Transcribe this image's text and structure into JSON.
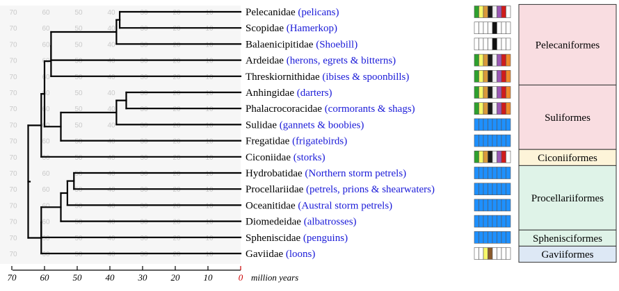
{
  "axis": {
    "ticks": [
      70,
      60,
      50,
      40,
      30,
      20,
      10,
      0
    ],
    "unit_label": "million years",
    "zero_color": "#cc0000"
  },
  "background_grid": {
    "values": [
      70,
      60,
      50,
      40,
      30,
      20,
      10
    ]
  },
  "taxa": [
    {
      "family": "Pelecanidae",
      "common": "(pelicans)",
      "swatches": [
        "#2ea02e",
        "#f7f76a",
        "#d99a3a",
        "#1a1a1a",
        "#f0f0f0",
        "#9b59b6",
        "#d01b1b",
        "#ffffff"
      ]
    },
    {
      "family": "Scopidae",
      "common": "(Hamerkop)",
      "swatches": [
        "#ffffff",
        "#ffffff",
        "#ffffff",
        "#ffffff",
        "#111111",
        "#ffffff",
        "#ffffff",
        "#ffffff"
      ]
    },
    {
      "family": "Balaenicipitidae",
      "common": "(Shoebill)",
      "swatches": [
        "#ffffff",
        "#ffffff",
        "#ffffff",
        "#ffffff",
        "#111111",
        "#ffffff",
        "#ffffff",
        "#ffffff"
      ]
    },
    {
      "family": "Ardeidae",
      "common": "(herons, egrets & bitterns)",
      "swatches": [
        "#2ea02e",
        "#f7f76a",
        "#d99a3a",
        "#1a1a1a",
        "#f0f0f0",
        "#9b59b6",
        "#d01b1b",
        "#f08a2a"
      ]
    },
    {
      "family": "Threskiornithidae",
      "common": "(ibises & spoonbills)",
      "swatches": [
        "#2ea02e",
        "#f7f76a",
        "#d99a3a",
        "#1a1a1a",
        "#f0f0f0",
        "#9b59b6",
        "#d01b1b",
        "#f08a2a"
      ]
    },
    {
      "family": "Anhingidae",
      "common": "(darters)",
      "swatches": [
        "#2ea02e",
        "#f7f76a",
        "#d99a3a",
        "#1a1a1a",
        "#f0f0f0",
        "#9b59b6",
        "#d01b1b",
        "#f08a2a"
      ]
    },
    {
      "family": "Phalacrocoracidae",
      "common": "(cormorants & shags)",
      "swatches": [
        "#2ea02e",
        "#f7f76a",
        "#d99a3a",
        "#1a1a1a",
        "#f0f0f0",
        "#9b59b6",
        "#d01b1b",
        "#f08a2a"
      ]
    },
    {
      "family": "Sulidae",
      "common": "(gannets & boobies)",
      "swatches": [
        "#1e90ff",
        "#1e90ff",
        "#1e90ff",
        "#1e90ff",
        "#1e90ff",
        "#1e90ff",
        "#1e90ff",
        "#1e90ff"
      ]
    },
    {
      "family": "Fregatidae",
      "common": "(frigatebirds)",
      "swatches": [
        "#1e90ff",
        "#1e90ff",
        "#1e90ff",
        "#1e90ff",
        "#1e90ff",
        "#1e90ff",
        "#1e90ff",
        "#1e90ff"
      ]
    },
    {
      "family": "Ciconiidae",
      "common": "(storks)",
      "swatches": [
        "#2ea02e",
        "#f7f76a",
        "#d99a3a",
        "#1a1a1a",
        "#f0f0f0",
        "#9b59b6",
        "#d01b1b",
        "#ffffff"
      ]
    },
    {
      "family": "Hydrobatidae",
      "common": "(Northern storm petrels)",
      "swatches": [
        "#1e90ff",
        "#1e90ff",
        "#1e90ff",
        "#1e90ff",
        "#1e90ff",
        "#1e90ff",
        "#1e90ff",
        "#1e90ff"
      ]
    },
    {
      "family": "Procellariidae",
      "common": "(petrels, prions & shearwaters)",
      "swatches": [
        "#1e90ff",
        "#1e90ff",
        "#1e90ff",
        "#1e90ff",
        "#1e90ff",
        "#1e90ff",
        "#1e90ff",
        "#1e90ff"
      ]
    },
    {
      "family": "Oceanitidae",
      "common": "(Austral storm petrels)",
      "swatches": [
        "#1e90ff",
        "#1e90ff",
        "#1e90ff",
        "#1e90ff",
        "#1e90ff",
        "#1e90ff",
        "#1e90ff",
        "#1e90ff"
      ]
    },
    {
      "family": "Diomedeidae",
      "common": "(albatrosses)",
      "swatches": [
        "#1e90ff",
        "#1e90ff",
        "#1e90ff",
        "#1e90ff",
        "#1e90ff",
        "#1e90ff",
        "#1e90ff",
        "#1e90ff"
      ]
    },
    {
      "family": "Spheniscidae",
      "common": "(penguins)",
      "swatches": [
        "#1e90ff",
        "#1e90ff",
        "#1e90ff",
        "#1e90ff",
        "#1e90ff",
        "#1e90ff",
        "#1e90ff",
        "#1e90ff"
      ]
    },
    {
      "family": "Gaviidae",
      "common": "(loons)",
      "swatches": [
        "#ffffff",
        "#ffffff",
        "#f7f76a",
        "#8b5a2b",
        "#ffffff",
        "#ffffff",
        "#ffffff",
        "#ffffff"
      ]
    }
  ],
  "orders": [
    {
      "name": "Pelecaniformes",
      "first": 0,
      "last": 4,
      "color": "#f9dde1"
    },
    {
      "name": "Suliformes",
      "first": 5,
      "last": 8,
      "color": "#f9dde1"
    },
    {
      "name": "Ciconiiformes",
      "first": 9,
      "last": 9,
      "color": "#fdf4d9"
    },
    {
      "name": "Procellariiformes",
      "first": 10,
      "last": 13,
      "color": "#dff3e8"
    },
    {
      "name": "Sphenisciformes",
      "first": 14,
      "last": 14,
      "color": "#dff3e8"
    },
    {
      "name": "Gaviiformes",
      "first": 15,
      "last": 15,
      "color": "#dde8f5"
    }
  ],
  "tree": {
    "age": 65,
    "children": [
      {
        "age": 61,
        "children": [
          {
            "age": 60,
            "children": [
              {
                "age": 58,
                "children": [
                  {
                    "age": 58,
                    "children": [
                      {
                        "age": 38,
                        "children": [
                          {
                            "age": 37,
                            "children": [
                              {
                                "leaf": 0
                              },
                              {
                                "leaf": 1
                              }
                            ]
                          },
                          {
                            "leaf": 2
                          }
                        ]
                      },
                      {
                        "leaf": 3
                      }
                    ]
                  },
                  {
                    "leaf": 4
                  }
                ]
              },
              {
                "age": 55,
                "children": [
                  {
                    "age": 38,
                    "children": [
                      {
                        "age": 35,
                        "children": [
                          {
                            "leaf": 5
                          },
                          {
                            "leaf": 6
                          }
                        ]
                      },
                      {
                        "leaf": 7
                      }
                    ]
                  },
                  {
                    "leaf": 8
                  }
                ]
              }
            ]
          },
          {
            "leaf": 9
          }
        ]
      },
      {
        "age": 61,
        "children": [
          {
            "age": 61,
            "children": [
              {
                "age": 55,
                "children": [
                  {
                    "age": 53,
                    "children": [
                      {
                        "age": 51,
                        "children": [
                          {
                            "leaf": 10
                          },
                          {
                            "leaf": 11
                          }
                        ]
                      },
                      {
                        "leaf": 12
                      }
                    ]
                  },
                  {
                    "leaf": 13
                  }
                ]
              },
              {
                "leaf": 14
              }
            ]
          },
          {
            "leaf": 15
          }
        ]
      }
    ]
  }
}
